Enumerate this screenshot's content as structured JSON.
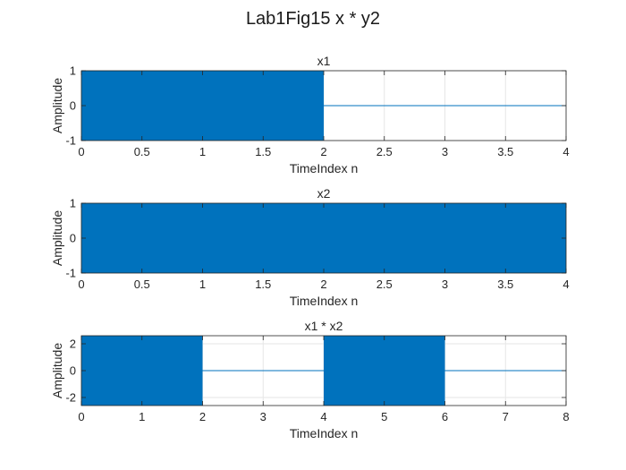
{
  "figure": {
    "suptitle": "Lab1Fig15 x * y2",
    "colors": {
      "signal": "#0072BD",
      "grid": "#e6e6e6",
      "axis": "#262626",
      "background": "#ffffff"
    }
  },
  "chart_data": [
    {
      "type": "line",
      "title": "x1",
      "xlabel": "TimeIndex n",
      "ylabel": "Amplitude",
      "xlim": [
        0,
        4
      ],
      "ylim": [
        -1,
        1
      ],
      "xticks": [
        0,
        0.5,
        1,
        1.5,
        2,
        2.5,
        3,
        3.5,
        4
      ],
      "xtick_labels": [
        "0",
        "0.5",
        "1",
        "1.5",
        "2",
        "2.5",
        "3",
        "3.5",
        "4"
      ],
      "yticks": [
        -1,
        0,
        1
      ],
      "ytick_labels": [
        "-1",
        "0",
        "1"
      ],
      "grid": true,
      "series": [
        {
          "segments": [
            {
              "x_range": [
                0,
                2
              ],
              "kind": "oscillation",
              "amplitude": 1
            },
            {
              "x_range": [
                2,
                4
              ],
              "kind": "flat",
              "value": 0
            }
          ]
        }
      ]
    },
    {
      "type": "line",
      "title": "x2",
      "xlabel": "TimeIndex n",
      "ylabel": "Amplitude",
      "xlim": [
        0,
        4
      ],
      "ylim": [
        -1,
        1
      ],
      "xticks": [
        0,
        0.5,
        1,
        1.5,
        2,
        2.5,
        3,
        3.5,
        4
      ],
      "xtick_labels": [
        "0",
        "0.5",
        "1",
        "1.5",
        "2",
        "2.5",
        "3",
        "3.5",
        "4"
      ],
      "yticks": [
        -1,
        0,
        1
      ],
      "ytick_labels": [
        "-1",
        "0",
        "1"
      ],
      "grid": true,
      "series": [
        {
          "segments": [
            {
              "x_range": [
                0,
                4
              ],
              "kind": "oscillation",
              "amplitude": 1
            }
          ]
        }
      ]
    },
    {
      "type": "line",
      "title": "x1 * x2",
      "xlabel": "TimeIndex n",
      "ylabel": "Amplitude",
      "xlim": [
        0,
        8
      ],
      "ylim": [
        -2.6,
        2.6
      ],
      "xticks": [
        0,
        1,
        2,
        3,
        4,
        5,
        6,
        7,
        8
      ],
      "xtick_labels": [
        "0",
        "1",
        "2",
        "3",
        "4",
        "5",
        "6",
        "7",
        "8"
      ],
      "yticks": [
        -2,
        0,
        2
      ],
      "ytick_labels": [
        "-2",
        "0",
        "2"
      ],
      "grid": true,
      "series": [
        {
          "segments": [
            {
              "x_range": [
                0,
                2
              ],
              "kind": "oscillation",
              "amplitude": 2.6
            },
            {
              "x_range": [
                2,
                4
              ],
              "kind": "flat",
              "value": 0
            },
            {
              "x_range": [
                4,
                6
              ],
              "kind": "oscillation",
              "amplitude": 2.6
            },
            {
              "x_range": [
                6,
                8
              ],
              "kind": "flat",
              "value": 0
            }
          ]
        }
      ]
    }
  ]
}
